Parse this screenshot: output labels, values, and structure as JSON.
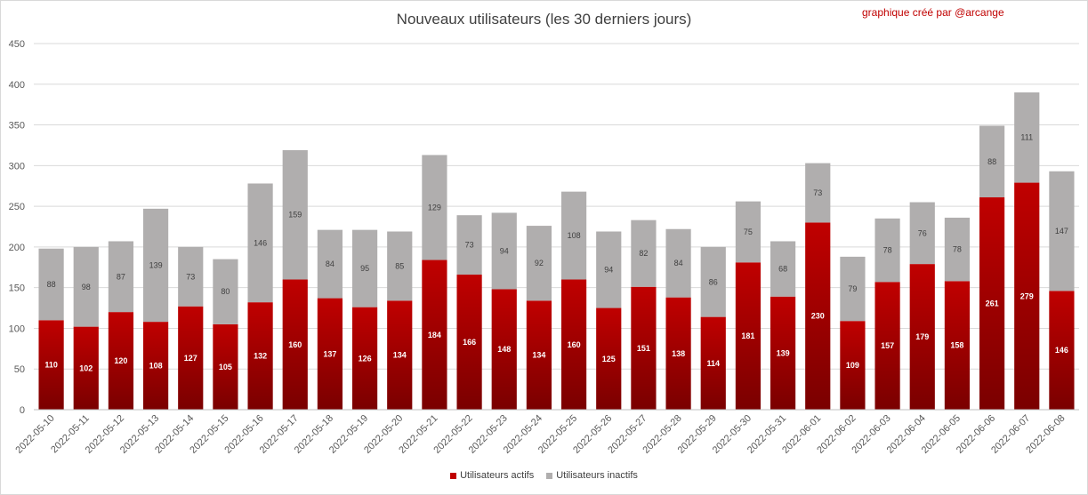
{
  "title": "Nouveaux utilisateurs  (les 30 derniers  jours)",
  "credit": "graphique créé par @arcange",
  "colors": {
    "active": "#c00000",
    "inactive": "#b0aeae",
    "grid": "#d9d9d9",
    "axis": "#595959"
  },
  "legend": {
    "active": "Utilisateurs actifs",
    "inactive": "Utilisateurs inactifs"
  },
  "chart_data": {
    "type": "bar",
    "stacked": true,
    "title": "Nouveaux utilisateurs  (les 30 derniers  jours)",
    "categories": [
      "2022-05-10",
      "2022-05-11",
      "2022-05-12",
      "2022-05-13",
      "2022-05-14",
      "2022-05-15",
      "2022-05-16",
      "2022-05-17",
      "2022-05-18",
      "2022-05-19",
      "2022-05-20",
      "2022-05-21",
      "2022-05-22",
      "2022-05-23",
      "2022-05-24",
      "2022-05-25",
      "2022-05-26",
      "2022-05-27",
      "2022-05-28",
      "2022-05-29",
      "2022-05-30",
      "2022-05-31",
      "2022-06-01",
      "2022-06-02",
      "2022-06-03",
      "2022-06-04",
      "2022-06-05",
      "2022-06-06",
      "2022-06-07",
      "2022-06-08"
    ],
    "series": [
      {
        "name": "Utilisateurs actifs",
        "values": [
          110,
          102,
          120,
          108,
          127,
          105,
          132,
          160,
          137,
          126,
          134,
          184,
          166,
          148,
          134,
          160,
          125,
          151,
          138,
          114,
          181,
          139,
          230,
          109,
          157,
          179,
          158,
          261,
          279,
          146
        ]
      },
      {
        "name": "Utilisateurs inactifs",
        "values": [
          88,
          98,
          87,
          139,
          73,
          80,
          146,
          159,
          84,
          95,
          85,
          129,
          73,
          94,
          92,
          108,
          94,
          82,
          84,
          86,
          75,
          68,
          73,
          79,
          78,
          76,
          78,
          88,
          111,
          147
        ]
      }
    ],
    "ylim": [
      0,
      450
    ],
    "yticks": [
      0,
      50,
      100,
      150,
      200,
      250,
      300,
      350,
      400,
      450
    ],
    "grid": true,
    "legend_position": "bottom"
  }
}
